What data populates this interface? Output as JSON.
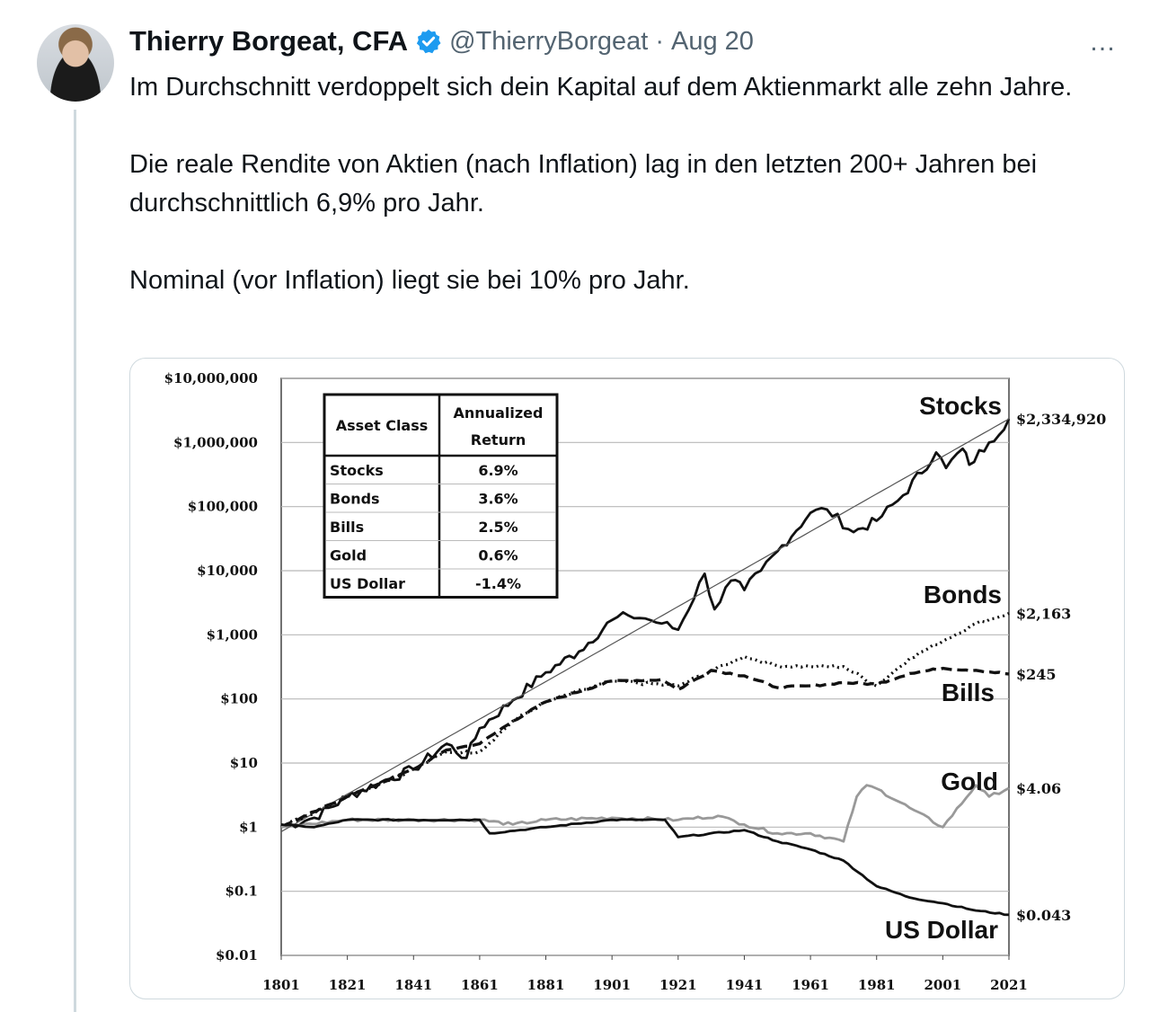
{
  "tweet": {
    "author_name": "Thierry Borgeat, CFA",
    "handle": "@ThierryBorgeat",
    "separator": "·",
    "date": "Aug 20",
    "more_icon": "…",
    "paragraphs": [
      "Im Durchschnitt verdoppelt sich dein Kapital auf dem Aktienmarkt alle zehn Jahre.",
      "Die reale Rendite von Aktien (nach Inflation) lag in den letzten 200+ Jahren bei durchschnittlich 6,9% pro Jahr.",
      "Nominal (vor Inflation) liegt sie bei 10% pro Jahr."
    ],
    "icons": {
      "avatar": "avatar",
      "verified": "verified-badge-icon",
      "more": "more-options-icon"
    },
    "colors": {
      "verified": "#1d9bf0",
      "text": "#0f1419",
      "muted": "#536471"
    }
  },
  "chart_data": {
    "type": "line",
    "scale": "log",
    "ylim": [
      0.01,
      10000000
    ],
    "xlim": [
      1801,
      2021
    ],
    "y_ticks": [
      {
        "value": 10000000,
        "label": "$10,000,000"
      },
      {
        "value": 1000000,
        "label": "$1,000,000"
      },
      {
        "value": 100000,
        "label": "$100,000"
      },
      {
        "value": 10000,
        "label": "$10,000"
      },
      {
        "value": 1000,
        "label": "$1,000"
      },
      {
        "value": 100,
        "label": "$100"
      },
      {
        "value": 10,
        "label": "$10"
      },
      {
        "value": 1,
        "label": "$1"
      },
      {
        "value": 0.1,
        "label": "$0.1"
      },
      {
        "value": 0.01,
        "label": "$0.01"
      }
    ],
    "x_ticks": [
      "1801",
      "1821",
      "1841",
      "1861",
      "1881",
      "1901",
      "1921",
      "1941",
      "1961",
      "1981",
      "2001",
      "2021"
    ],
    "grid": "horizontal",
    "table": {
      "headers": [
        "Asset Class",
        "Annualized",
        "Return"
      ],
      "rows": [
        [
          "Stocks",
          "6.9%"
        ],
        [
          "Bonds",
          "3.6%"
        ],
        [
          "Bills",
          "2.5%"
        ],
        [
          "Gold",
          "0.6%"
        ],
        [
          "US Dollar",
          "-1.4%"
        ]
      ]
    },
    "series": [
      {
        "name": "Stocks",
        "end_label": "$2,334,920",
        "style": "solid",
        "color": "#111111",
        "x": [
          1801,
          1811,
          1821,
          1831,
          1841,
          1851,
          1857,
          1861,
          1871,
          1881,
          1891,
          1901,
          1906,
          1911,
          1916,
          1921,
          1929,
          1932,
          1937,
          1941,
          1946,
          1951,
          1961,
          1966,
          1974,
          1981,
          1989,
          1999,
          2002,
          2007,
          2009,
          2015,
          2021
        ],
        "y": [
          1,
          1.4,
          3,
          5,
          8,
          20,
          12,
          35,
          95,
          260,
          550,
          1700,
          2000,
          1800,
          1500,
          1200,
          9000,
          2500,
          7000,
          5000,
          10000,
          20000,
          80000,
          90000,
          40000,
          60000,
          150000,
          700000,
          400000,
          800000,
          450000,
          1000000,
          2334920
        ]
      },
      {
        "name": "Trend",
        "end_label": "",
        "style": "thin",
        "color": "#555555",
        "x": [
          1801,
          2021
        ],
        "y": [
          0.85,
          2334920
        ]
      },
      {
        "name": "Bonds",
        "end_label": "$2,163",
        "style": "dotted",
        "color": "#111111",
        "x": [
          1801,
          1821,
          1841,
          1851,
          1861,
          1871,
          1881,
          1901,
          1921,
          1941,
          1951,
          1961,
          1971,
          1981,
          1991,
          2001,
          2011,
          2021
        ],
        "y": [
          1,
          3,
          8,
          15,
          15,
          45,
          90,
          190,
          160,
          460,
          330,
          320,
          320,
          160,
          430,
          800,
          1500,
          2163
        ]
      },
      {
        "name": "Bills",
        "end_label": "$245",
        "style": "dashed",
        "color": "#111111",
        "x": [
          1801,
          1821,
          1841,
          1851,
          1861,
          1871,
          1881,
          1901,
          1916,
          1921,
          1931,
          1941,
          1951,
          1961,
          1971,
          1981,
          1991,
          2001,
          2011,
          2021
        ],
        "y": [
          1,
          3,
          8,
          16,
          20,
          45,
          90,
          190,
          200,
          140,
          280,
          230,
          150,
          160,
          180,
          170,
          250,
          300,
          280,
          245
        ]
      },
      {
        "name": "Gold",
        "end_label": "$4.06",
        "style": "solid",
        "color": "#999999",
        "x": [
          1801,
          1821,
          1841,
          1861,
          1871,
          1881,
          1901,
          1921,
          1933,
          1941,
          1951,
          1961,
          1971,
          1975,
          1978,
          1981,
          1991,
          2001,
          2011,
          2015,
          2021
        ],
        "y": [
          1,
          1.3,
          1.3,
          1.3,
          1.1,
          1.3,
          1.4,
          1.3,
          1.5,
          1.1,
          0.8,
          0.8,
          0.6,
          3,
          4.5,
          4,
          2,
          1,
          4.5,
          3,
          4.06
        ]
      },
      {
        "name": "US Dollar",
        "end_label": "$0.043",
        "style": "solid",
        "color": "#111111",
        "x": [
          1801,
          1811,
          1821,
          1841,
          1861,
          1864,
          1881,
          1901,
          1917,
          1921,
          1941,
          1951,
          1961,
          1971,
          1981,
          1991,
          2001,
          2011,
          2021
        ],
        "y": [
          1.1,
          1,
          1.3,
          1.3,
          1.3,
          0.8,
          1,
          1.3,
          1.3,
          0.7,
          0.9,
          0.6,
          0.45,
          0.3,
          0.12,
          0.08,
          0.065,
          0.05,
          0.043
        ]
      }
    ]
  }
}
